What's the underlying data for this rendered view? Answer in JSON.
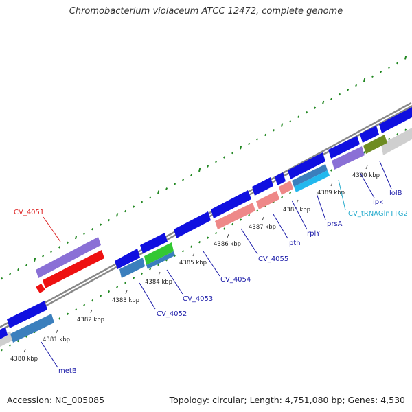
{
  "title": "Chromobacterium violaceum ATCC 12472, complete genome",
  "footer": {
    "accession": "Accession: NC_005085",
    "topology": "Topology: circular; Length: 4,751,080 bp; Genes: 4,530"
  },
  "ticks": [
    "4380 kbp",
    "4381 kbp",
    "4382 kbp",
    "4383 kbp",
    "4384 kbp",
    "4385 kbp",
    "4386 kbp",
    "4387 kbp",
    "4388 kbp",
    "4389 kbp",
    "4390 kbp"
  ],
  "genes": [
    {
      "label": "CV_4051",
      "color": "#dd2222"
    },
    {
      "label": "metB",
      "color": "#1a1aa8"
    },
    {
      "label": "CV_4052",
      "color": "#1a1aa8"
    },
    {
      "label": "CV_4053",
      "color": "#1a1aa8"
    },
    {
      "label": "CV_4054",
      "color": "#1a1aa8"
    },
    {
      "label": "CV_4055",
      "color": "#1a1aa8"
    },
    {
      "label": "pth",
      "color": "#1a1aa8"
    },
    {
      "label": "rplY",
      "color": "#1a1aa8"
    },
    {
      "label": "prsA",
      "color": "#1a1aa8"
    },
    {
      "label": "CV_tRNAGlnTTG2",
      "color": "#22aacc"
    },
    {
      "label": "ipk",
      "color": "#1a1aa8"
    },
    {
      "label": "lolB",
      "color": "#1a1aa8"
    }
  ]
}
